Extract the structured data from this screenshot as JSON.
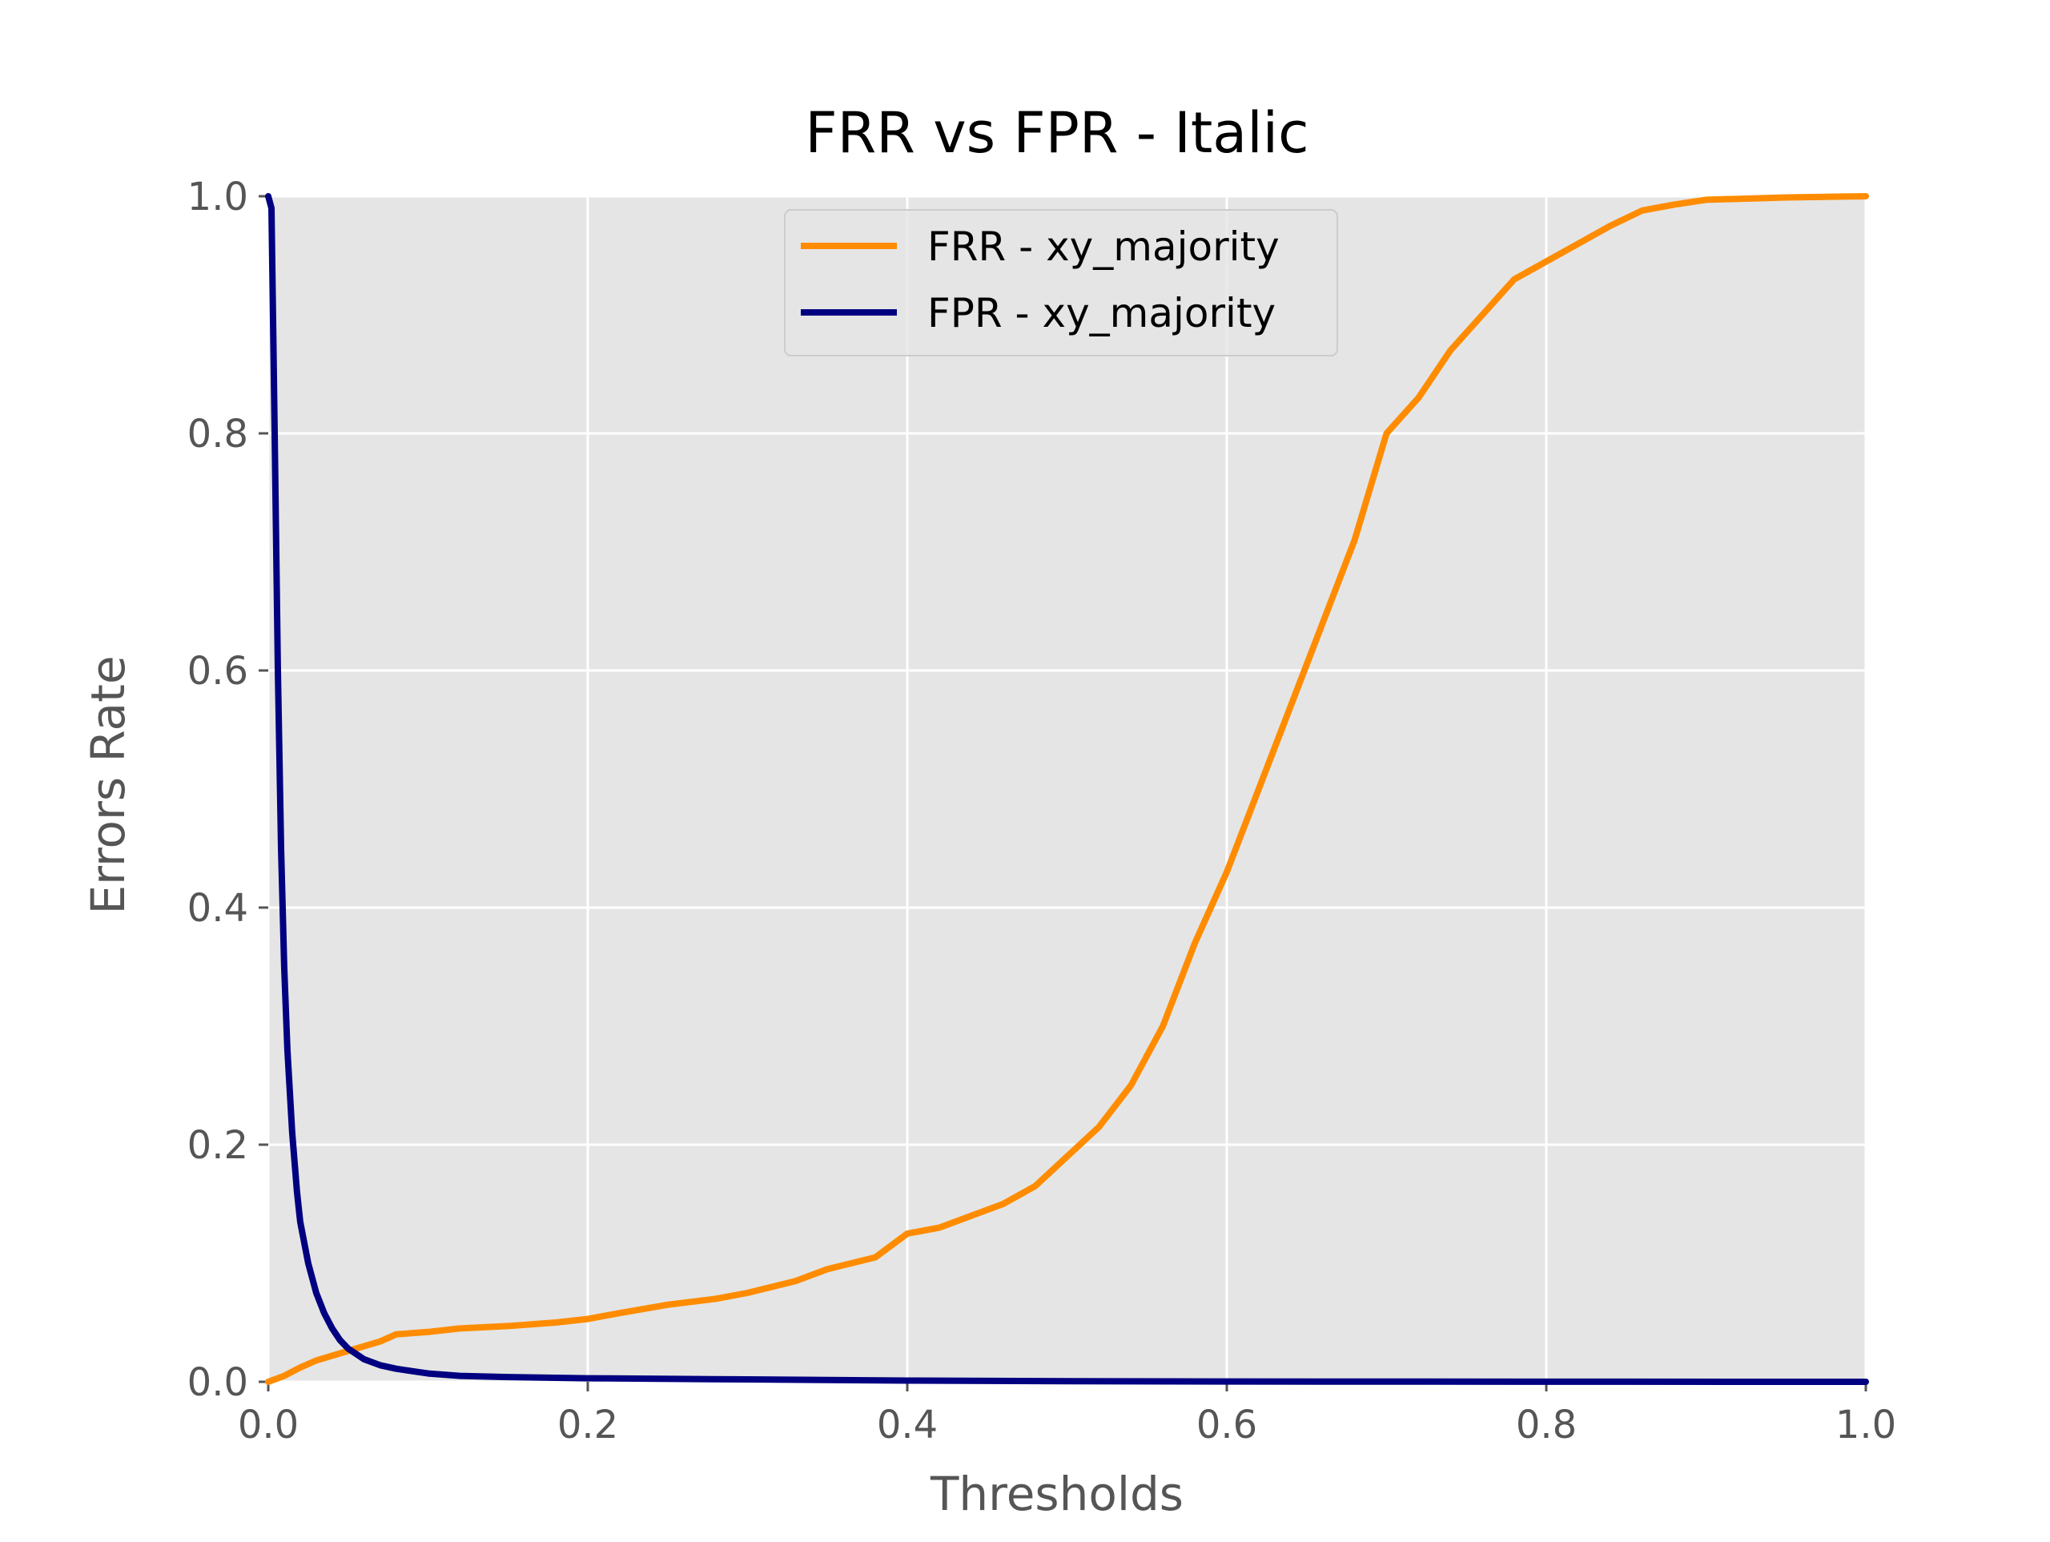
{
  "chart_data": {
    "type": "line",
    "title": "FRR vs FPR - Italic",
    "xlabel": "Thresholds",
    "ylabel": "Errors Rate",
    "xlim": [
      0.0,
      1.0
    ],
    "ylim": [
      0.0,
      1.0
    ],
    "xticks": [
      0.0,
      0.2,
      0.4,
      0.6,
      0.8,
      1.0
    ],
    "xtick_labels": [
      "0.0",
      "0.2",
      "0.4",
      "0.6",
      "0.8",
      "1.0"
    ],
    "yticks": [
      0.0,
      0.2,
      0.4,
      0.6,
      0.8,
      1.0
    ],
    "ytick_labels": [
      "0.0",
      "0.2",
      "0.4",
      "0.6",
      "0.8",
      "1.0"
    ],
    "grid": true,
    "legend_position": "upper center",
    "background": "#e5e5e5",
    "series": [
      {
        "name": "FRR - xy_majority",
        "color": "#ff8c00",
        "x": [
          0.0,
          0.01,
          0.02,
          0.03,
          0.04,
          0.05,
          0.06,
          0.07,
          0.08,
          0.1,
          0.12,
          0.15,
          0.18,
          0.2,
          0.22,
          0.25,
          0.28,
          0.3,
          0.33,
          0.35,
          0.38,
          0.4,
          0.42,
          0.44,
          0.46,
          0.48,
          0.5,
          0.52,
          0.54,
          0.56,
          0.58,
          0.6,
          0.62,
          0.64,
          0.66,
          0.68,
          0.7,
          0.72,
          0.74,
          0.76,
          0.78,
          0.8,
          0.82,
          0.84,
          0.86,
          0.88,
          0.9,
          0.95,
          1.0
        ],
        "y": [
          0.0,
          0.005,
          0.012,
          0.018,
          0.022,
          0.026,
          0.03,
          0.034,
          0.04,
          0.042,
          0.045,
          0.047,
          0.05,
          0.053,
          0.058,
          0.065,
          0.07,
          0.075,
          0.085,
          0.095,
          0.105,
          0.125,
          0.13,
          0.14,
          0.15,
          0.165,
          0.19,
          0.215,
          0.25,
          0.3,
          0.37,
          0.43,
          0.5,
          0.57,
          0.64,
          0.71,
          0.8,
          0.83,
          0.87,
          0.9,
          0.93,
          0.945,
          0.96,
          0.975,
          0.988,
          0.993,
          0.997,
          0.999,
          1.0
        ]
      },
      {
        "name": "FPR - xy_majority",
        "color": "#000080",
        "x": [
          0.0,
          0.002,
          0.004,
          0.006,
          0.008,
          0.01,
          0.012,
          0.015,
          0.018,
          0.02,
          0.025,
          0.03,
          0.035,
          0.04,
          0.045,
          0.05,
          0.06,
          0.07,
          0.08,
          0.09,
          0.1,
          0.12,
          0.15,
          0.2,
          0.3,
          0.4,
          0.5,
          0.6,
          0.8,
          1.0
        ],
        "y": [
          1.0,
          0.99,
          0.8,
          0.6,
          0.45,
          0.35,
          0.28,
          0.21,
          0.16,
          0.135,
          0.1,
          0.075,
          0.058,
          0.045,
          0.035,
          0.028,
          0.019,
          0.014,
          0.011,
          0.009,
          0.007,
          0.005,
          0.004,
          0.003,
          0.002,
          0.001,
          0.0005,
          0.0003,
          0.0001,
          0.0
        ]
      }
    ]
  }
}
